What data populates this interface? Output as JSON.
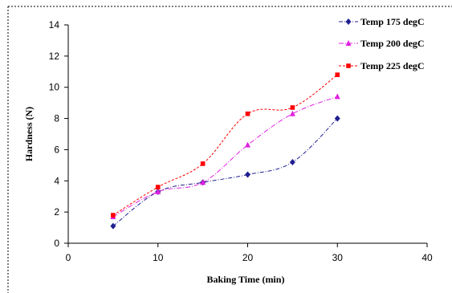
{
  "chart_data": {
    "type": "line",
    "title": "",
    "xlabel": "Baking Time (min)",
    "ylabel": "Hardness (N)",
    "xlim": [
      0,
      40
    ],
    "ylim": [
      0,
      14
    ],
    "xticks": [
      0,
      10,
      20,
      30,
      40
    ],
    "yticks": [
      0,
      2,
      4,
      6,
      8,
      10,
      12,
      14
    ],
    "grid": false,
    "legend_position": "top-right",
    "x": [
      5,
      10,
      15,
      20,
      25,
      30
    ],
    "series": [
      {
        "name": "Temp 175 degC",
        "color": "#1f1f8f",
        "marker": "diamond",
        "values": [
          1.1,
          3.3,
          3.9,
          4.4,
          5.2,
          8.0
        ]
      },
      {
        "name": "Temp 200 degC",
        "color": "#e020e0",
        "marker": "triangle",
        "values": [
          1.7,
          3.3,
          3.9,
          6.3,
          8.3,
          9.4
        ]
      },
      {
        "name": "Temp 225 degC",
        "color": "#ff0000",
        "marker": "square",
        "values": [
          1.8,
          3.6,
          5.1,
          8.3,
          8.7,
          10.8
        ]
      }
    ]
  }
}
